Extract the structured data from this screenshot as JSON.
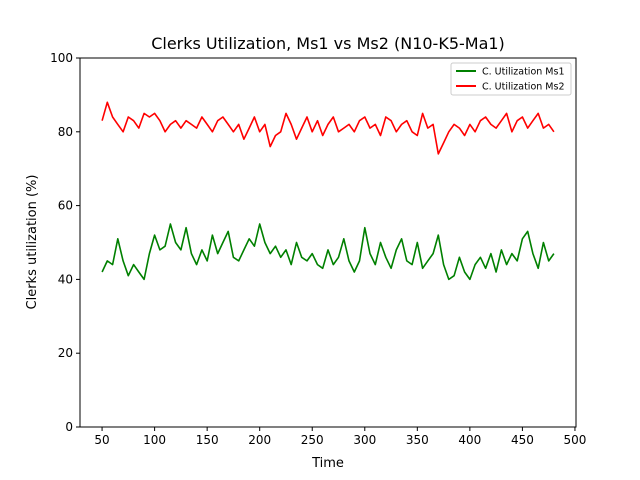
{
  "chart_data": {
    "type": "line",
    "title": "Clerks Utilization, Ms1 vs Ms2 (N10-K5-Ma1)",
    "xlabel": "Time",
    "ylabel": "Clerks utilization (%)",
    "xlim": [
      29,
      501
    ],
    "ylim": [
      0,
      100
    ],
    "xticks": [
      50,
      100,
      150,
      200,
      250,
      300,
      350,
      400,
      450,
      500
    ],
    "yticks": [
      0,
      20,
      40,
      60,
      80,
      100
    ],
    "grid": false,
    "legend_position": "top-right",
    "colors": {
      "ms1": "#008000",
      "ms2": "#ff0000"
    },
    "series": [
      {
        "name": "C. Utilization Ms1",
        "color": "#008000",
        "x": [
          50,
          55,
          60,
          65,
          70,
          75,
          80,
          85,
          90,
          95,
          100,
          105,
          110,
          115,
          120,
          125,
          130,
          135,
          140,
          145,
          150,
          155,
          160,
          165,
          170,
          175,
          180,
          185,
          190,
          195,
          200,
          205,
          210,
          215,
          220,
          225,
          230,
          235,
          240,
          245,
          250,
          255,
          260,
          265,
          270,
          275,
          280,
          285,
          290,
          295,
          300,
          305,
          310,
          315,
          320,
          325,
          330,
          335,
          340,
          345,
          350,
          355,
          360,
          365,
          370,
          375,
          380,
          385,
          390,
          395,
          400,
          405,
          410,
          415,
          420,
          425,
          430,
          435,
          440,
          445,
          450,
          455,
          460,
          465,
          470,
          475,
          480
        ],
        "values": [
          42,
          45,
          44,
          51,
          45,
          41,
          44,
          42,
          40,
          47,
          52,
          48,
          49,
          55,
          50,
          48,
          54,
          47,
          44,
          48,
          45,
          52,
          47,
          50,
          53,
          46,
          45,
          48,
          51,
          49,
          55,
          50,
          47,
          49,
          46,
          48,
          44,
          50,
          46,
          45,
          47,
          44,
          43,
          48,
          44,
          46,
          51,
          45,
          42,
          45,
          54,
          47,
          44,
          50,
          46,
          43,
          48,
          51,
          45,
          44,
          50,
          43,
          45,
          47,
          52,
          44,
          40,
          41,
          46,
          42,
          40,
          44,
          46,
          43,
          47,
          42,
          48,
          44,
          47,
          45,
          51,
          53,
          47,
          43,
          50,
          45,
          47
        ]
      },
      {
        "name": "C. Utilization Ms2",
        "color": "#ff0000",
        "x": [
          50,
          55,
          60,
          65,
          70,
          75,
          80,
          85,
          90,
          95,
          100,
          105,
          110,
          115,
          120,
          125,
          130,
          135,
          140,
          145,
          150,
          155,
          160,
          165,
          170,
          175,
          180,
          185,
          190,
          195,
          200,
          205,
          210,
          215,
          220,
          225,
          230,
          235,
          240,
          245,
          250,
          255,
          260,
          265,
          270,
          275,
          280,
          285,
          290,
          295,
          300,
          305,
          310,
          315,
          320,
          325,
          330,
          335,
          340,
          345,
          350,
          355,
          360,
          365,
          370,
          375,
          380,
          385,
          390,
          395,
          400,
          405,
          410,
          415,
          420,
          425,
          430,
          435,
          440,
          445,
          450,
          455,
          460,
          465,
          470,
          475,
          480
        ],
        "values": [
          83,
          88,
          84,
          82,
          80,
          84,
          83,
          81,
          85,
          84,
          85,
          83,
          80,
          82,
          83,
          81,
          83,
          82,
          81,
          84,
          82,
          80,
          83,
          84,
          82,
          80,
          82,
          78,
          81,
          84,
          80,
          82,
          76,
          79,
          80,
          85,
          82,
          78,
          81,
          84,
          80,
          83,
          79,
          82,
          84,
          80,
          81,
          82,
          80,
          83,
          84,
          81,
          82,
          79,
          84,
          83,
          80,
          82,
          83,
          80,
          79,
          85,
          81,
          82,
          74,
          77,
          80,
          82,
          81,
          79,
          82,
          80,
          83,
          84,
          82,
          81,
          83,
          85,
          80,
          83,
          84,
          81,
          83,
          85,
          81,
          82,
          80
        ]
      }
    ]
  }
}
